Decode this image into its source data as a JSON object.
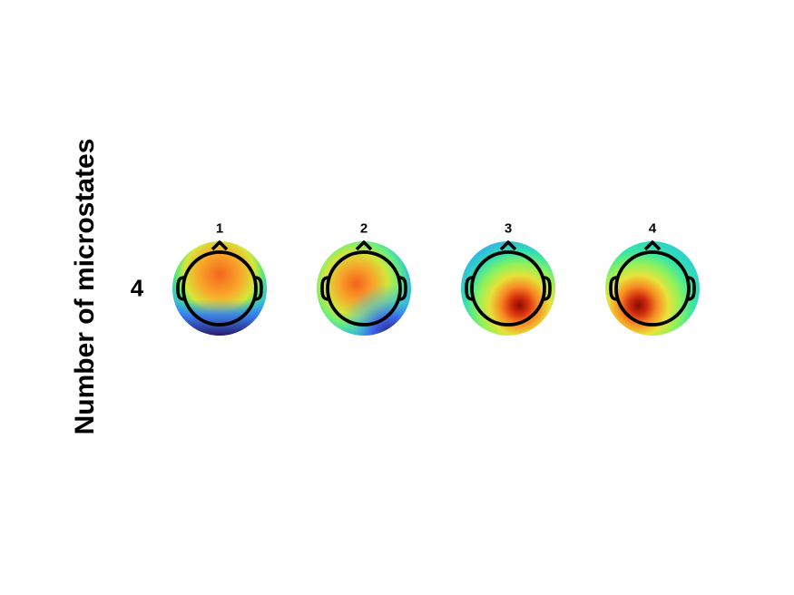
{
  "figure": {
    "y_axis_label": "Number of microstates",
    "row_label": "4",
    "maps": [
      {
        "title": "1",
        "colors": [
          "#f46d20",
          "#3a8cf0",
          "#2a1c6e"
        ]
      },
      {
        "title": "2",
        "colors": [
          "#f46d20",
          "#4b6df0",
          "#2a1c6e"
        ]
      },
      {
        "title": "3",
        "colors": [
          "#8b0c05",
          "#a8f24a",
          "#2fb4e6"
        ]
      },
      {
        "title": "4",
        "colors": [
          "#8b0c05",
          "#a8f24a",
          "#2fd1cf"
        ]
      }
    ]
  }
}
